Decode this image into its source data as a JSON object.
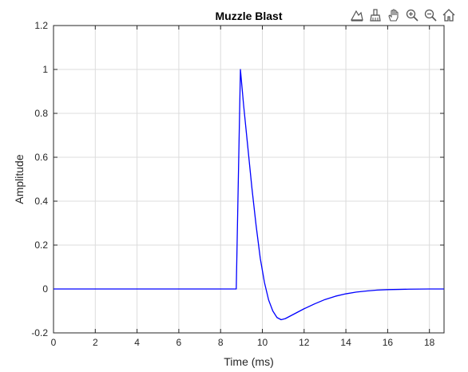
{
  "toolbar": {
    "icons": [
      "data-tips-icon",
      "brush-icon",
      "pan-hand-icon",
      "zoom-in-icon",
      "zoom-out-icon",
      "home-icon"
    ]
  },
  "colors": {
    "line": "#0000ff",
    "grid": "#dcdcdc",
    "axis": "#262626",
    "background": "#ffffff"
  },
  "chart_data": {
    "type": "line",
    "title": "Muzzle Blast",
    "xlabel": "Time (ms)",
    "ylabel": "Amplitude",
    "xlim": [
      0,
      18.7
    ],
    "ylim": [
      -0.2,
      1.2
    ],
    "xticks": [
      0,
      2,
      4,
      6,
      8,
      10,
      12,
      14,
      16,
      18
    ],
    "yticks": [
      -0.2,
      0,
      0.2,
      0.4,
      0.6,
      0.8,
      1,
      1.2
    ],
    "xtick_labels": [
      "0",
      "2",
      "4",
      "6",
      "8",
      "10",
      "12",
      "14",
      "16",
      "18"
    ],
    "ytick_labels": [
      "-0.2",
      "0",
      "0.2",
      "0.4",
      "0.6",
      "0.8",
      "1",
      "1.2"
    ],
    "grid": true,
    "series": [
      {
        "color": "#0000ff",
        "x": [
          0,
          8.75,
          8.95,
          9.1,
          9.3,
          9.5,
          9.7,
          9.9,
          10.1,
          10.3,
          10.5,
          10.7,
          10.9,
          11.1,
          11.3,
          11.6,
          12.0,
          12.5,
          13.0,
          13.5,
          14.0,
          14.5,
          15.0,
          15.5,
          16.0,
          16.5,
          17.0,
          17.5,
          18.0,
          18.7
        ],
        "y": [
          0,
          0,
          1.0,
          0.84,
          0.65,
          0.46,
          0.29,
          0.14,
          0.03,
          -0.05,
          -0.1,
          -0.13,
          -0.14,
          -0.135,
          -0.125,
          -0.11,
          -0.09,
          -0.068,
          -0.048,
          -0.033,
          -0.022,
          -0.014,
          -0.009,
          -0.005,
          -0.003,
          -0.002,
          -0.001,
          -0.0005,
          0,
          0
        ]
      }
    ]
  }
}
